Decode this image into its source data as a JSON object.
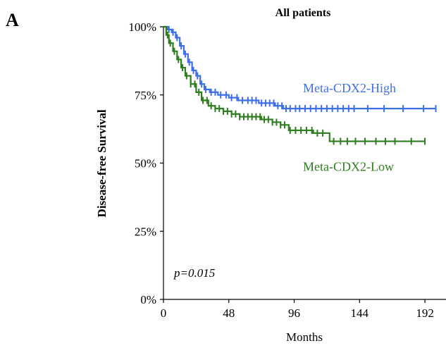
{
  "panel_label": "A",
  "chart_data": {
    "type": "line",
    "title": "All patients",
    "xlabel": "Months",
    "ylabel": "Disease-free Survival",
    "xlim": [
      0,
      208
    ],
    "ylim": [
      0,
      100
    ],
    "x_ticks": [
      0,
      48,
      96,
      144,
      192
    ],
    "y_ticks": [
      0,
      25,
      50,
      75,
      100
    ],
    "y_tick_labels": [
      "0%",
      "25%",
      "50%",
      "75%",
      "100%"
    ],
    "annotation": "p=0.015",
    "grid": false,
    "series": [
      {
        "name": "Meta-CDX2-High",
        "color": "#3f6fe6",
        "points": [
          [
            0,
            100
          ],
          [
            3,
            99
          ],
          [
            6,
            98
          ],
          [
            9,
            96
          ],
          [
            12,
            93
          ],
          [
            15,
            90
          ],
          [
            18,
            87
          ],
          [
            21,
            84
          ],
          [
            24,
            82
          ],
          [
            27,
            79
          ],
          [
            30,
            77
          ],
          [
            34,
            76
          ],
          [
            40,
            75
          ],
          [
            48,
            74
          ],
          [
            55,
            73
          ],
          [
            62,
            73
          ],
          [
            70,
            72
          ],
          [
            78,
            72
          ],
          [
            82,
            71
          ],
          [
            88,
            70
          ],
          [
            120,
            70
          ],
          [
            150,
            70
          ],
          [
            175,
            70
          ],
          [
            200,
            70
          ]
        ],
        "censor_x": [
          4,
          7,
          10,
          13,
          16,
          19,
          22,
          25,
          28,
          31,
          35,
          38,
          42,
          46,
          50,
          54,
          58,
          62,
          65,
          68,
          72,
          75,
          78,
          81,
          84,
          87,
          90,
          93,
          97,
          100,
          104,
          108,
          112,
          116,
          120,
          124,
          128,
          132,
          136,
          140,
          150,
          162,
          176,
          191,
          200
        ]
      },
      {
        "name": "Meta-CDX2-Low",
        "color": "#2e7d1e",
        "points": [
          [
            0,
            100
          ],
          [
            2,
            97
          ],
          [
            4,
            94
          ],
          [
            7,
            91
          ],
          [
            10,
            88
          ],
          [
            13,
            85
          ],
          [
            16,
            82
          ],
          [
            20,
            79
          ],
          [
            24,
            76
          ],
          [
            28,
            73
          ],
          [
            33,
            71
          ],
          [
            38,
            70
          ],
          [
            44,
            69
          ],
          [
            50,
            68
          ],
          [
            56,
            67
          ],
          [
            64,
            67
          ],
          [
            72,
            66
          ],
          [
            80,
            65
          ],
          [
            86,
            64
          ],
          [
            92,
            62
          ],
          [
            102,
            62
          ],
          [
            110,
            61
          ],
          [
            118,
            61
          ],
          [
            122,
            58
          ],
          [
            150,
            58
          ],
          [
            175,
            58
          ],
          [
            192,
            58
          ]
        ],
        "censor_x": [
          3,
          5,
          8,
          11,
          14,
          17,
          20,
          23,
          26,
          29,
          32,
          35,
          38,
          41,
          44,
          47,
          50,
          53,
          56,
          59,
          62,
          65,
          68,
          71,
          74,
          77,
          80,
          83,
          86,
          89,
          93,
          97,
          101,
          105,
          109,
          113,
          117,
          125,
          130,
          135,
          141,
          148,
          156,
          163,
          170,
          182,
          192
        ]
      }
    ]
  }
}
